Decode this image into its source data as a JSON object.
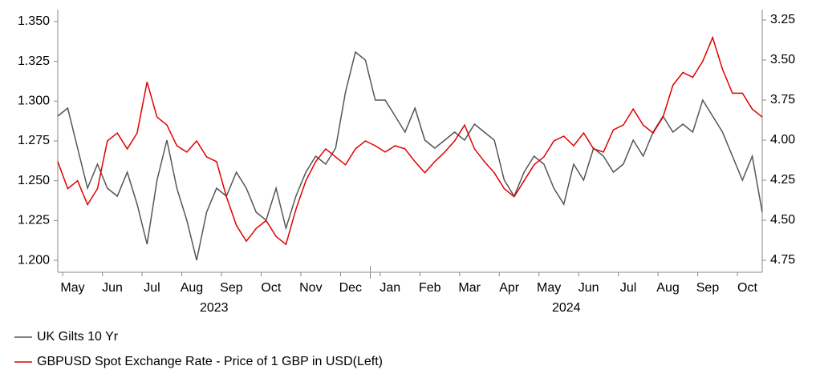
{
  "chart_data": {
    "type": "line",
    "categories": [
      null,
      "May",
      null,
      null,
      null,
      "Jun",
      null,
      null,
      null,
      "Jul",
      null,
      null,
      null,
      "Aug",
      null,
      null,
      null,
      "Sep",
      null,
      null,
      null,
      "Oct",
      null,
      null,
      null,
      "Nov",
      null,
      null,
      null,
      "Dec",
      null,
      null,
      null,
      "Jan",
      null,
      null,
      null,
      "Feb",
      null,
      null,
      null,
      "Mar",
      null,
      null,
      null,
      "Apr",
      null,
      null,
      null,
      "May",
      null,
      null,
      null,
      "Jun",
      null,
      null,
      null,
      "Jul",
      null,
      null,
      null,
      "Aug",
      null,
      null,
      null,
      "Sep",
      null,
      null,
      null,
      "Oct",
      null,
      null
    ],
    "years": [
      "2023",
      "2024"
    ],
    "series": [
      {
        "name": "UK Gilts 10 Yr",
        "color": "#555555",
        "axis": "y2",
        "values": [
          3.85,
          3.8,
          4.05,
          4.3,
          4.15,
          4.3,
          4.35,
          4.2,
          4.4,
          4.65,
          4.25,
          4.0,
          4.3,
          4.5,
          4.75,
          4.45,
          4.3,
          4.35,
          4.2,
          4.3,
          4.45,
          4.5,
          4.3,
          4.55,
          4.35,
          4.2,
          4.1,
          4.15,
          4.05,
          3.7,
          3.45,
          3.5,
          3.75,
          3.75,
          3.85,
          3.95,
          3.8,
          4.0,
          4.05,
          4.0,
          3.95,
          4.0,
          3.9,
          3.95,
          4.0,
          4.25,
          4.35,
          4.2,
          4.1,
          4.15,
          4.3,
          4.4,
          4.15,
          4.25,
          4.05,
          4.1,
          4.2,
          4.15,
          4.0,
          4.1,
          3.95,
          3.85,
          3.95,
          3.9,
          3.95,
          3.75,
          3.85,
          3.95,
          4.1,
          4.25,
          4.1,
          4.45
        ]
      },
      {
        "name": "GBPUSD Spot Exchange Rate - Price of 1 GBP in USD(Left)",
        "color": "#e00000",
        "values": [
          1.262,
          1.245,
          1.25,
          1.235,
          1.245,
          1.275,
          1.28,
          1.27,
          1.28,
          1.312,
          1.29,
          1.285,
          1.272,
          1.268,
          1.275,
          1.265,
          1.262,
          1.24,
          1.222,
          1.212,
          1.22,
          1.225,
          1.215,
          1.21,
          1.232,
          1.25,
          1.262,
          1.27,
          1.265,
          1.26,
          1.27,
          1.275,
          1.272,
          1.268,
          1.272,
          1.27,
          1.262,
          1.255,
          1.262,
          1.268,
          1.275,
          1.285,
          1.27,
          1.262,
          1.255,
          1.245,
          1.24,
          1.25,
          1.26,
          1.265,
          1.275,
          1.278,
          1.272,
          1.28,
          1.27,
          1.268,
          1.282,
          1.285,
          1.295,
          1.285,
          1.28,
          1.29,
          1.31,
          1.318,
          1.315,
          1.325,
          1.34,
          1.32,
          1.305,
          1.305,
          1.295,
          1.29
        ]
      }
    ],
    "ylim": [
      1.1925,
      1.3575
    ],
    "yticks": [
      {
        "value": 1.2,
        "label": "1.200"
      },
      {
        "value": 1.225,
        "label": "1.225"
      },
      {
        "value": 1.25,
        "label": "1.250"
      },
      {
        "value": 1.275,
        "label": "1.275"
      },
      {
        "value": 1.3,
        "label": "1.300"
      },
      {
        "value": 1.325,
        "label": "1.325"
      },
      {
        "value": 1.35,
        "label": "1.350"
      }
    ],
    "y2lim": [
      3.185,
      4.825
    ],
    "y2_inverted": true,
    "y2ticks": [
      3.25,
      {
        "value": 3.5,
        "label": "3.50"
      },
      3.75,
      {
        "value": 4.0,
        "label": "4.00"
      },
      4.25,
      {
        "value": 4.5,
        "label": "4.50"
      },
      4.75
    ],
    "legend": "bottom-left"
  }
}
